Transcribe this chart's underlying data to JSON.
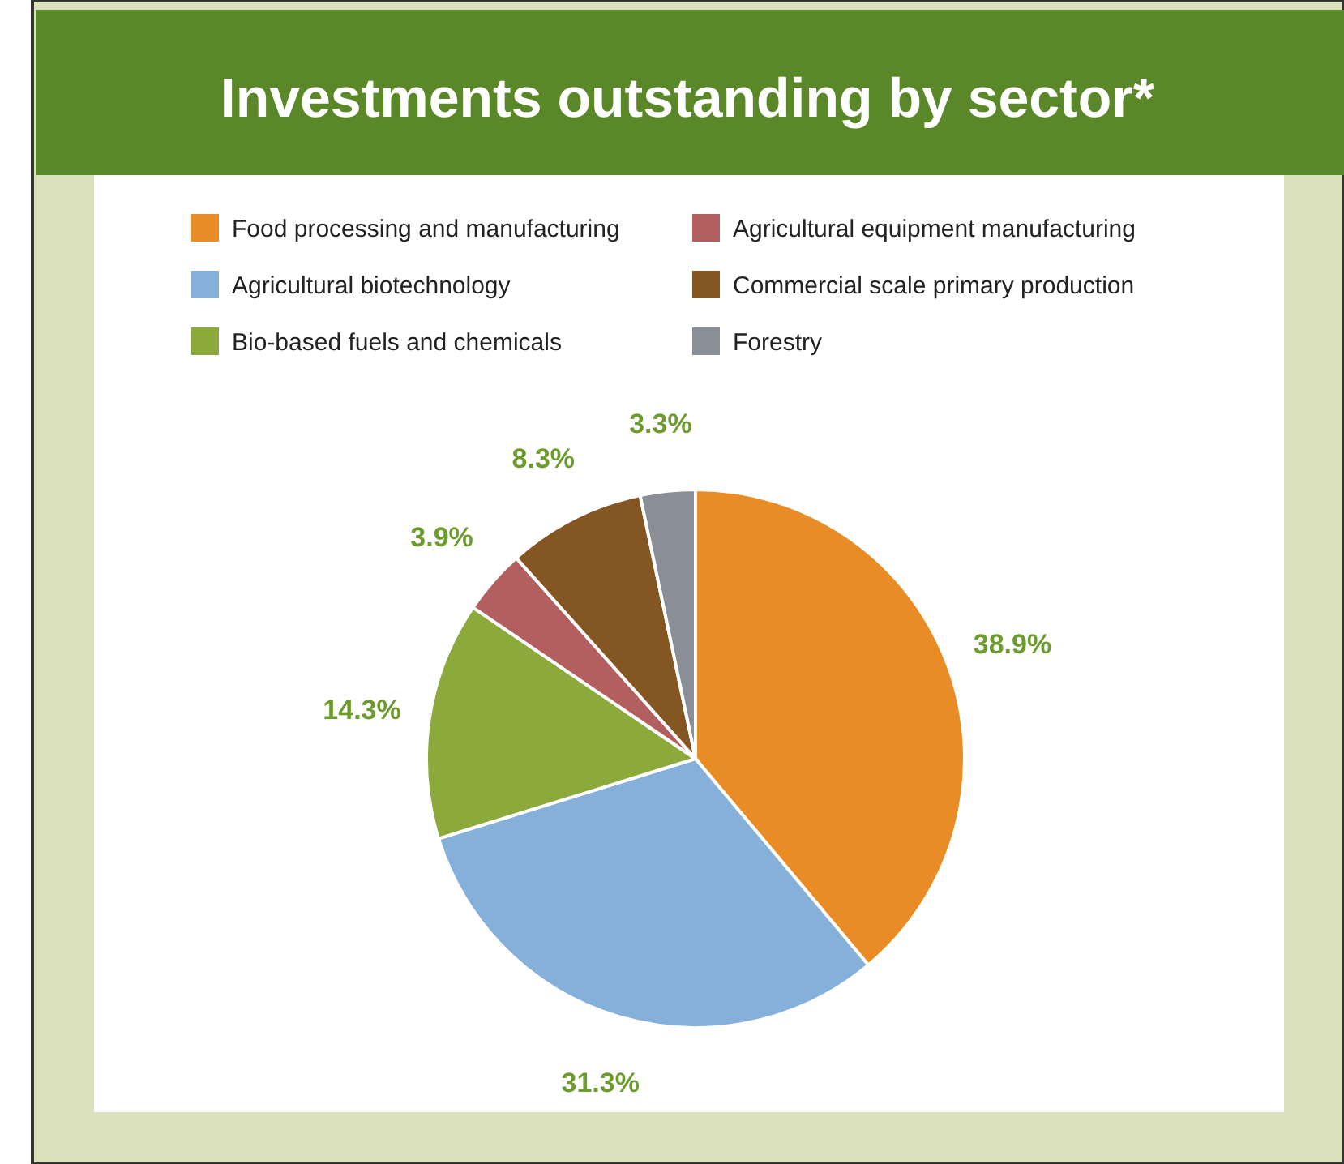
{
  "chart_data": {
    "type": "pie",
    "title": "Investments outstanding by sector*",
    "categories": [
      "Food processing and manufacturing",
      "Agricultural biotechnology",
      "Bio-based fuels and chemicals",
      "Agricultural equipment manufacturing",
      "Commercial scale primary production",
      "Forestry"
    ],
    "values": [
      38.9,
      31.3,
      14.3,
      3.9,
      8.3,
      3.3
    ],
    "colors": [
      "#e98c26",
      "#85b0d9",
      "#8caa3c",
      "#b35f5f",
      "#845622",
      "#8a8e97"
    ],
    "value_labels": [
      "38.9%",
      "31.3%",
      "14.3%",
      "3.9%",
      "8.3%",
      "3.3%"
    ],
    "legend": "top"
  }
}
